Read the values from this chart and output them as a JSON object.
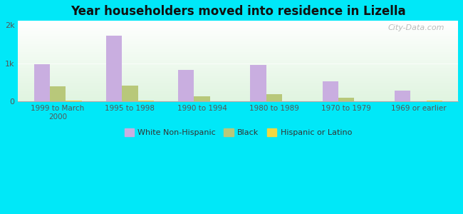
{
  "title": "Year householders moved into residence in Lizella",
  "categories": [
    "1999 to March\n2000",
    "1995 to 1998",
    "1990 to 1994",
    "1980 to 1989",
    "1970 to 1979",
    "1969 or earlier"
  ],
  "white_non_hispanic": [
    980,
    1720,
    820,
    960,
    530,
    280
  ],
  "black": [
    390,
    420,
    130,
    200,
    110,
    0
  ],
  "hispanic_or_latino": [
    25,
    20,
    15,
    15,
    10,
    30
  ],
  "bar_colors": {
    "white": "#c9aee0",
    "black": "#b8c87a",
    "hispanic": "#f0d840"
  },
  "background_outer": "#00e8f8",
  "ylim": [
    0,
    2100
  ],
  "ytick_labels": [
    "0",
    "1k",
    "2k"
  ],
  "bar_width": 0.22,
  "legend_labels": [
    "White Non-Hispanic",
    "Black",
    "Hispanic or Latino"
  ],
  "watermark": "City-Data.com"
}
